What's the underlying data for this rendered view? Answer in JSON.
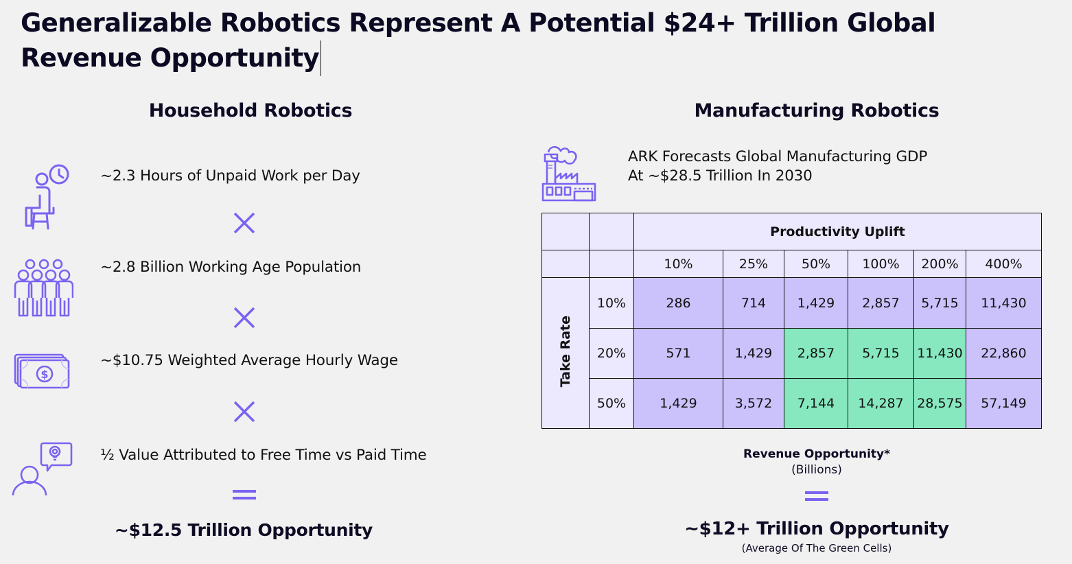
{
  "title": "Generalizable Robotics Represent A Potential $24+ Trillion Global Revenue Opportunity",
  "household": {
    "heading": "Household Robotics",
    "items": [
      {
        "icon": "person-clock-icon",
        "text": "~2.3 Hours of Unpaid Work per Day"
      },
      {
        "icon": "population-icon",
        "text": "~2.8 Billion Working Age Population"
      },
      {
        "icon": "money-icon",
        "text": "~$10.75 Weighted Average Hourly Wage"
      },
      {
        "icon": "person-idea-icon",
        "text": "½ Value Attributed to Free Time vs Paid Time"
      }
    ],
    "operators": [
      "times",
      "times",
      "times",
      "equals"
    ],
    "result": "~$12.5 Trillion Opportunity"
  },
  "manufacturing": {
    "heading": "Manufacturing Robotics",
    "icon": "factory-icon",
    "forecast_line1": "ARK Forecasts Global Manufacturing GDP",
    "forecast_line2": "At ~$28.5 Trillion In 2030",
    "table": {
      "column_group_label": "Productivity Uplift",
      "row_group_label": "Take Rate",
      "columns": [
        "10%",
        "25%",
        "50%",
        "100%",
        "200%",
        "400%"
      ],
      "rows": [
        {
          "label": "10%",
          "values": [
            "286",
            "714",
            "1,429",
            "2,857",
            "5,715",
            "11,430"
          ],
          "green": [
            false,
            false,
            false,
            false,
            false,
            false
          ]
        },
        {
          "label": "20%",
          "values": [
            "571",
            "1,429",
            "2,857",
            "5,715",
            "11,430",
            "22,860"
          ],
          "green": [
            false,
            false,
            true,
            true,
            true,
            false
          ]
        },
        {
          "label": "50%",
          "values": [
            "1,429",
            "3,572",
            "7,144",
            "14,287",
            "28,575",
            "57,149"
          ],
          "green": [
            false,
            false,
            true,
            true,
            true,
            false
          ]
        }
      ]
    },
    "caption": "Revenue Opportunity*",
    "caption_sub": "(Billions)",
    "result": "~$12+ Trillion Opportunity",
    "result_sub": "(Average Of The Green Cells)"
  },
  "colors": {
    "accent": "#7a63f2",
    "lavender": "#cbc1fb",
    "green": "#87e8c0",
    "header": "#ece8fd"
  }
}
